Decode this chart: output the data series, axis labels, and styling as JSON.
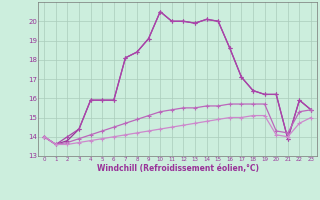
{
  "xlabel": "Windchill (Refroidissement éolien,°C)",
  "background_color": "#cceedd",
  "grid_color": "#aaccbb",
  "line_color1": "#993399",
  "line_color2": "#aa44aa",
  "line_color3": "#bb66bb",
  "line_color4": "#cc88cc",
  "x_hours": [
    0,
    1,
    2,
    3,
    4,
    5,
    6,
    7,
    8,
    9,
    10,
    11,
    12,
    13,
    14,
    15,
    16,
    17,
    18,
    19,
    20,
    21,
    22,
    23
  ],
  "series1": [
    14.0,
    13.6,
    13.8,
    14.4,
    15.9,
    15.9,
    15.9,
    18.1,
    18.4,
    19.1,
    20.5,
    20.0,
    20.0,
    19.9,
    20.1,
    20.0,
    18.6,
    17.1,
    16.4,
    16.2,
    16.2,
    13.9,
    15.9,
    15.4
  ],
  "series2": [
    14.0,
    13.6,
    14.0,
    14.4,
    15.9,
    15.9,
    15.9,
    18.1,
    18.4,
    19.1,
    20.5,
    20.0,
    20.0,
    19.9,
    20.1,
    20.0,
    18.6,
    17.1,
    16.4,
    16.2,
    16.2,
    13.9,
    15.9,
    15.4
  ],
  "series3": [
    14.0,
    13.6,
    13.7,
    13.9,
    14.1,
    14.3,
    14.5,
    14.7,
    14.9,
    15.1,
    15.3,
    15.4,
    15.5,
    15.5,
    15.6,
    15.6,
    15.7,
    15.7,
    15.7,
    15.7,
    14.3,
    14.2,
    15.3,
    15.4
  ],
  "series4": [
    14.0,
    13.6,
    13.6,
    13.7,
    13.8,
    13.9,
    14.0,
    14.1,
    14.2,
    14.3,
    14.4,
    14.5,
    14.6,
    14.7,
    14.8,
    14.9,
    15.0,
    15.0,
    15.1,
    15.1,
    14.1,
    14.0,
    14.7,
    15.0
  ],
  "ylim": [
    13.0,
    21.0
  ],
  "xlim": [
    -0.5,
    23.5
  ],
  "yticks": [
    13,
    14,
    15,
    16,
    17,
    18,
    19,
    20
  ],
  "xticks": [
    0,
    1,
    2,
    3,
    4,
    5,
    6,
    7,
    8,
    9,
    10,
    11,
    12,
    13,
    14,
    15,
    16,
    17,
    18,
    19,
    20,
    21,
    22,
    23
  ]
}
